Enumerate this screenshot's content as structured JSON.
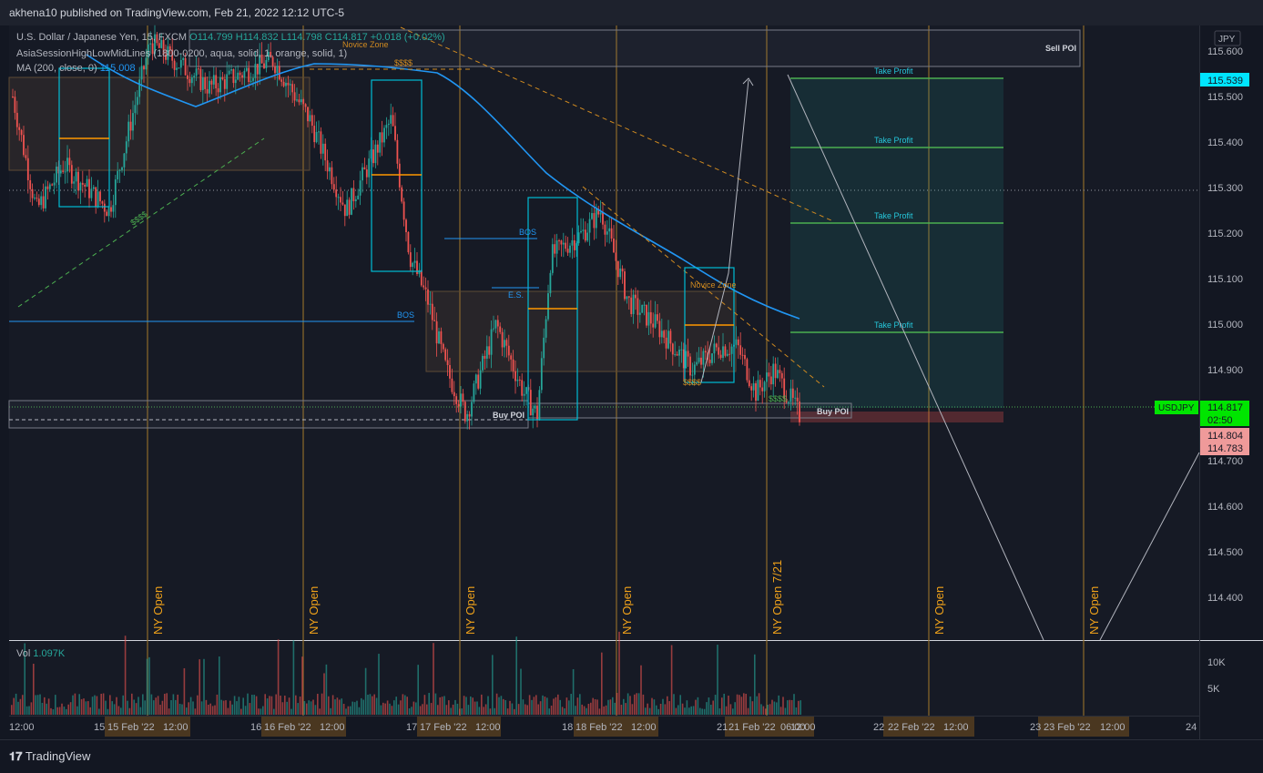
{
  "header": {
    "publish_line": "akhena10 published on TradingView.com, Feb 21, 2022 12:12 UTC-5"
  },
  "legend": {
    "symbol_line_prefix": "U.S. Dollar / Japanese Yen, 15, FXCM",
    "ohlc": "O114.799  H114.832  L114.798  C114.817  +0.018 (+0.02%)",
    "indicator1": "AsiaSessionHighLowMidLines (1800-0200, aqua, solid, 1, orange, solid, 1)",
    "indicator2_label": "MA (200, close, 0)",
    "indicator2_value": "115.008"
  },
  "price_scale": {
    "currency": "JPY",
    "ticks": [
      "115.600",
      "115.500",
      "115.400",
      "115.300",
      "115.200",
      "115.100",
      "115.000",
      "114.900",
      "114.700",
      "114.600",
      "114.500",
      "114.400"
    ],
    "badges": {
      "target": "115.539",
      "symbol": "USDJPY",
      "last_price": "114.817",
      "countdown": "02:50",
      "low1": "114.804",
      "low2": "114.783"
    }
  },
  "volume": {
    "label": "Vol",
    "value": "1.097K",
    "ticks": [
      "10K",
      "5K"
    ]
  },
  "time_axis": {
    "labels": [
      "12:00",
      "15",
      "15 Feb '22",
      "12:00",
      "16",
      "16 Feb '22",
      "12:00",
      "17",
      "17 Feb '22",
      "12:00",
      "18",
      "18 Feb '22",
      "12:00",
      "21",
      "21 Feb '22",
      "06:00",
      "12:00",
      "22",
      "22 Feb '22",
      "12:00",
      "23",
      "23 Feb '22",
      "12:00",
      "24"
    ]
  },
  "annotations": {
    "ny_open": "NY Open",
    "ny_open_21": "NY Open 7/21",
    "take_profit": "Take Profit",
    "sell_poi": "Sell POI",
    "buy_poi": "Buy POI",
    "bos": "BOS",
    "es": "E.S.",
    "novice_zone": "Novice Zone",
    "liquidity": "$$$$"
  },
  "chart_data": {
    "type": "candlestick",
    "symbol": "USDJPY",
    "interval": "15",
    "ylim": [
      114.3,
      115.65
    ],
    "last": {
      "open": 114.799,
      "high": 114.832,
      "low": 114.798,
      "close": 114.817,
      "change": 0.018,
      "change_pct": 0.02
    },
    "ma200_last": 115.008,
    "take_profit_levels": [
      115.539,
      115.385,
      115.22,
      114.98
    ],
    "buy_poi_range": [
      114.79,
      114.8
    ],
    "colors": {
      "up": "#26a69a",
      "down": "#ef5350",
      "ma": "#2196f3",
      "session": "#00bcd4",
      "mid": "#ff9800",
      "take_profit": "#4caf50"
    }
  }
}
